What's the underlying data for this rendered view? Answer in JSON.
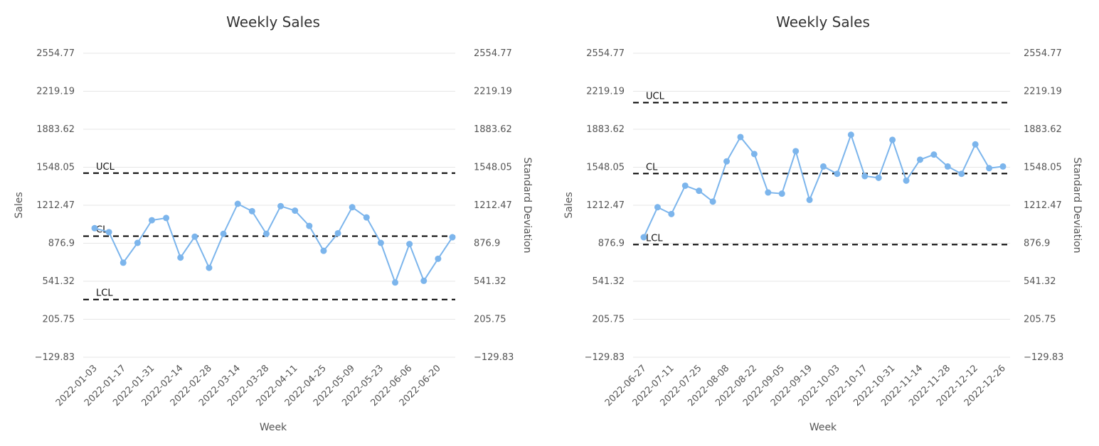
{
  "chart_data": [
    {
      "type": "line",
      "title": "Weekly Sales",
      "xlabel": "Week",
      "ylabel": "Sales",
      "y2label": "Standard Deviation",
      "ylim": [
        -129.83,
        2554.77
      ],
      "yticks": [
        "2554.77",
        "2219.19",
        "1883.62",
        "1548.05",
        "1212.47",
        "876.9",
        "541.32",
        "205.75",
        "−129.83"
      ],
      "ytick_values": [
        2554.77,
        2219.19,
        1883.62,
        1548.05,
        1212.47,
        876.9,
        541.32,
        205.75,
        -129.83
      ],
      "xtick_labels": [
        "2022-01-03",
        "2022-01-17",
        "2022-01-31",
        "2022-02-14",
        "2022-02-28",
        "2022-03-14",
        "2022-03-28",
        "2022-04-11",
        "2022-04-25",
        "2022-05-09",
        "2022-05-23",
        "2022-06-06",
        "2022-06-20"
      ],
      "grid": true,
      "color": "#7cb5ec",
      "series": [
        {
          "x": [
            "2022-01-03",
            "2022-01-10",
            "2022-01-17",
            "2022-01-24",
            "2022-01-31",
            "2022-02-07",
            "2022-02-14",
            "2022-02-21",
            "2022-02-28",
            "2022-03-07",
            "2022-03-14",
            "2022-03-21",
            "2022-03-28",
            "2022-04-04",
            "2022-04-11",
            "2022-04-18",
            "2022-04-25",
            "2022-05-02",
            "2022-05-09",
            "2022-05-16",
            "2022-05-23",
            "2022-05-30",
            "2022-06-06",
            "2022-06-13",
            "2022-06-20",
            "2022-06-27"
          ],
          "values": [
            1010,
            975,
            705,
            880,
            1080,
            1100,
            750,
            935,
            660,
            960,
            1225,
            1160,
            960,
            1205,
            1165,
            1030,
            810,
            965,
            1195,
            1105,
            880,
            530,
            870,
            545,
            740,
            930
          ]
        }
      ],
      "control_lines": [
        {
          "label": "UCL",
          "value": 1496
        },
        {
          "label": "CL",
          "value": 940
        },
        {
          "label": "LCL",
          "value": 380
        }
      ]
    },
    {
      "type": "line",
      "title": "Weekly Sales",
      "xlabel": "Week",
      "ylabel": "Sales",
      "y2label": "Standard Deviation",
      "ylim": [
        -129.83,
        2554.77
      ],
      "yticks": [
        "2554.77",
        "2219.19",
        "1883.62",
        "1548.05",
        "1212.47",
        "876.9",
        "541.32",
        "205.75",
        "−129.83"
      ],
      "ytick_values": [
        2554.77,
        2219.19,
        1883.62,
        1548.05,
        1212.47,
        876.9,
        541.32,
        205.75,
        -129.83
      ],
      "xtick_labels": [
        "2022-06-27",
        "2022-07-11",
        "2022-07-25",
        "2022-08-08",
        "2022-08-22",
        "2022-09-05",
        "2022-09-19",
        "2022-10-03",
        "2022-10-17",
        "2022-10-31",
        "2022-11-14",
        "2022-11-28",
        "2022-12-12",
        "2022-12-26"
      ],
      "grid": true,
      "color": "#7cb5ec",
      "series": [
        {
          "x": [
            "2022-06-27",
            "2022-07-04",
            "2022-07-11",
            "2022-07-18",
            "2022-07-25",
            "2022-08-01",
            "2022-08-08",
            "2022-08-15",
            "2022-08-22",
            "2022-08-29",
            "2022-09-05",
            "2022-09-12",
            "2022-09-19",
            "2022-09-26",
            "2022-10-03",
            "2022-10-10",
            "2022-10-17",
            "2022-10-24",
            "2022-10-31",
            "2022-11-07",
            "2022-11-14",
            "2022-11-21",
            "2022-11-28",
            "2022-12-05",
            "2022-12-12",
            "2022-12-19",
            "2022-12-26"
          ],
          "values": [
            930,
            1195,
            1135,
            1385,
            1340,
            1245,
            1600,
            1815,
            1665,
            1325,
            1315,
            1690,
            1260,
            1555,
            1490,
            1835,
            1470,
            1455,
            1790,
            1430,
            1615,
            1660,
            1555,
            1490,
            1750,
            1540,
            1555
          ]
        }
      ],
      "control_lines": [
        {
          "label": "UCL",
          "value": 2119
        },
        {
          "label": "CL",
          "value": 1492
        },
        {
          "label": "LCL",
          "value": 865
        }
      ]
    }
  ]
}
